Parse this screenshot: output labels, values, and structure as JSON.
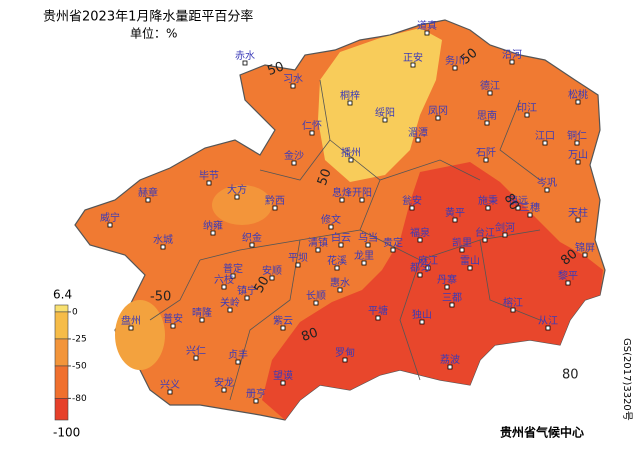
{
  "header": {
    "title": "贵州省2023年1月降水量距平百分率",
    "subtitle": "单位：%"
  },
  "legend": {
    "ticks": [
      6.4,
      0,
      -25,
      -50,
      -80,
      -100
    ],
    "colors": [
      "#f8e070",
      "#f6bc48",
      "#f3953a",
      "#f0702e",
      "#e6402a"
    ]
  },
  "contour_labels": [
    "50",
    "50",
    "50",
    "80",
    "80",
    "-50",
    "50",
    "80",
    "80"
  ],
  "cities": [
    "道真",
    "赤水",
    "正安",
    "务川",
    "沿河",
    "习水",
    "桐梓",
    "绥阳",
    "凤冈",
    "德江",
    "印江",
    "松桃",
    "仁怀",
    "湄潭",
    "思南",
    "江口",
    "铜仁",
    "金沙",
    "播州",
    "石阡",
    "万山",
    "毕节",
    "大方",
    "黔西",
    "息烽",
    "开阳",
    "瓮安",
    "黄平",
    "施秉",
    "镇远",
    "三穗",
    "岑巩",
    "天柱",
    "赫章",
    "威宁",
    "纳雍",
    "织金",
    "修文",
    "清镇",
    "白云",
    "乌当",
    "花溪",
    "龙里",
    "贵定",
    "福泉",
    "凯里",
    "剑河",
    "台江",
    "锦屏",
    "水城",
    "普定",
    "安顺",
    "平坝",
    "六枝",
    "镇宁",
    "关岭",
    "麻江",
    "丹寨",
    "雷山",
    "榕江",
    "黎平",
    "从江",
    "长顺",
    "惠水",
    "都匀",
    "三都",
    "平塘",
    "独山",
    "盘州",
    "普安",
    "晴隆",
    "紫云",
    "兴仁",
    "贞丰",
    "罗甸",
    "荔波",
    "兴义",
    "安龙",
    "望谟",
    "册亨"
  ],
  "footer": {
    "agency": "贵州省气候中心",
    "approval": "GS(2017)3320号"
  }
}
